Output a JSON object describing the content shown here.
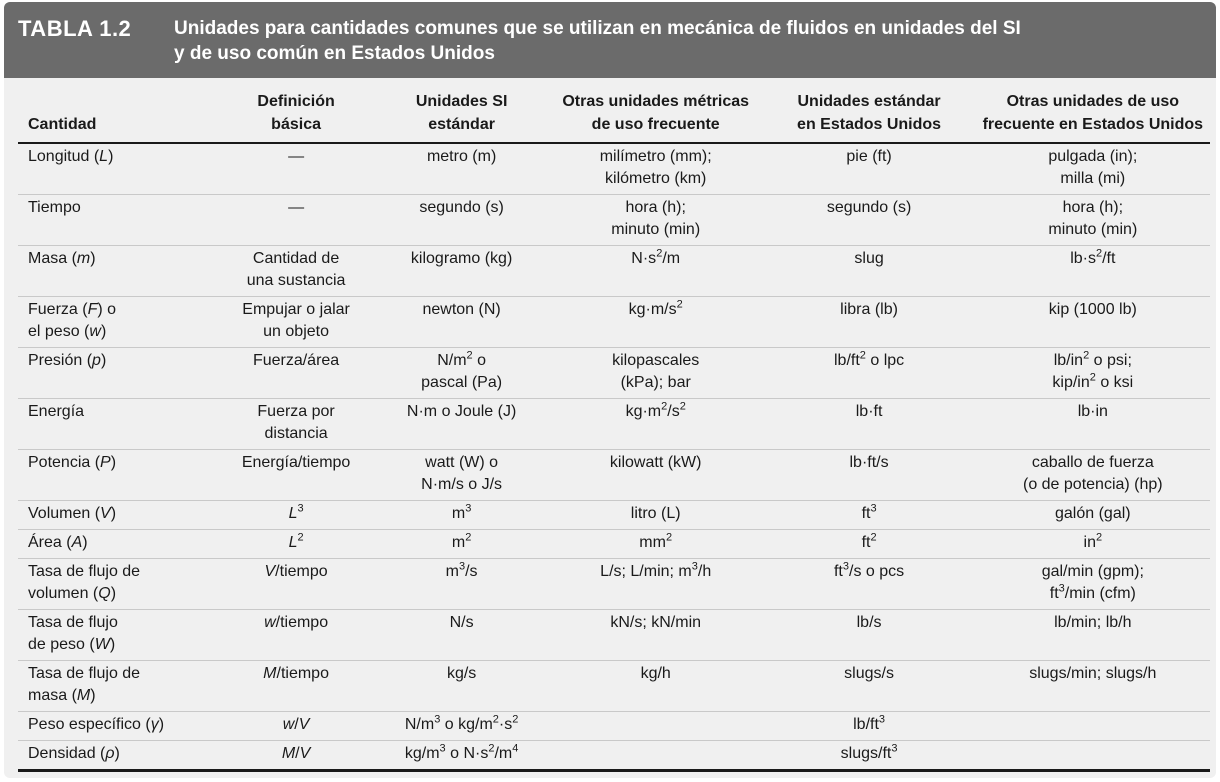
{
  "header": {
    "label": "TABLA 1.2",
    "title_line1": "Unidades para cantidades comunes que se utilizan en mecánica de fluidos en unidades del SI",
    "title_line2": "y de uso común en Estados Unidos"
  },
  "columns": [
    [
      "Cantidad"
    ],
    [
      "Definición",
      "básica"
    ],
    [
      "Unidades SI",
      "estándar"
    ],
    [
      "Otras unidades métricas",
      "de uso frecuente"
    ],
    [
      "Unidades estándar",
      "en Estados Unidos"
    ],
    [
      "Otras unidades de uso",
      "frecuente en Estados Unidos"
    ]
  ],
  "rows": [
    [
      "Longitud (<i>L</i>)",
      "—",
      "metro (m)",
      "milímetro (mm);<br>kilómetro (km)",
      "pie (ft)",
      "pulgada (in);<br>milla (mi)"
    ],
    [
      "Tiempo",
      "—",
      "segundo (s)",
      "hora (h);<br>minuto (min)",
      "segundo (s)",
      "hora (h);<br>minuto (min)"
    ],
    [
      "Masa (<i>m</i>)",
      "Cantidad de<br>una sustancia",
      "kilogramo (kg)",
      "N·s<sup>2</sup>/m",
      "slug",
      "lb·s<sup>2</sup>/ft"
    ],
    [
      "Fuerza (<i>F</i>) o<br>el peso (<i>w</i>)",
      "Empujar o jalar<br>un objeto",
      "newton (N)",
      "kg·m/s<sup>2</sup>",
      "libra (lb)",
      "kip (1000 lb)"
    ],
    [
      "Presión (<i>p</i>)",
      "Fuerza/área",
      "N/m<sup>2</sup> o<br>pascal (Pa)",
      "kilopascales<br>(kPa); bar",
      "lb/ft<sup>2</sup> o lpc",
      "lb/in<sup>2</sup> o psi;<br>kip/in<sup>2</sup> o ksi"
    ],
    [
      "Energía",
      "Fuerza por<br>distancia",
      "N·m o Joule (J)",
      "kg·m<sup>2</sup>/s<sup>2</sup>",
      "lb·ft",
      "lb·in"
    ],
    [
      "Potencia (<i>P</i>)",
      "Energía/tiempo",
      "watt (W) o<br>N·m/s o J/s",
      "kilowatt (kW)",
      "lb·ft/s",
      "caballo de fuerza<br>(o de potencia) (hp)"
    ],
    [
      "Volumen (<i>V</i>)",
      "<i>L</i><sup>3</sup>",
      "m<sup>3</sup>",
      "litro (L)",
      "ft<sup>3</sup>",
      "galón (gal)"
    ],
    [
      "Área (<i>A</i>)",
      "<i>L</i><sup>2</sup>",
      "m<sup>2</sup>",
      "mm<sup>2</sup>",
      "ft<sup>2</sup>",
      "in<sup>2</sup>"
    ],
    [
      "Tasa de flujo de<br>volumen (<i>Q</i>)",
      "<i>V</i>/tiempo",
      "m<sup>3</sup>/s",
      "L/s; L/min; m<sup>3</sup>/h",
      "ft<sup>3</sup>/s o pcs",
      "gal/min (gpm);<br>ft<sup>3</sup>/min (cfm)"
    ],
    [
      "Tasa de flujo<br>de peso (<i>W</i>)",
      "<i>w</i>/tiempo",
      "N/s",
      "kN/s; kN/min",
      "lb/s",
      "lb/min; lb/h"
    ],
    [
      "Tasa de flujo de<br>masa (<i>M</i>)",
      "<i>M</i>/tiempo",
      "kg/s",
      "kg/h",
      "slugs/s",
      "slugs/min; slugs/h"
    ],
    [
      "Peso específico (<i>γ</i>)",
      "<i>w</i>/<i>V</i>",
      "N/m<sup>3</sup> o kg/m<sup>2</sup>·s<sup>2</sup>",
      "",
      "lb/ft<sup>3</sup>",
      ""
    ],
    [
      "Densidad (<i>ρ</i>)",
      "<i>M</i>/<i>V</i>",
      "kg/m<sup>3</sup> o N·s<sup>2</sup>/m<sup>4</sup>",
      "",
      "slugs/ft<sup>3</sup>",
      ""
    ]
  ]
}
